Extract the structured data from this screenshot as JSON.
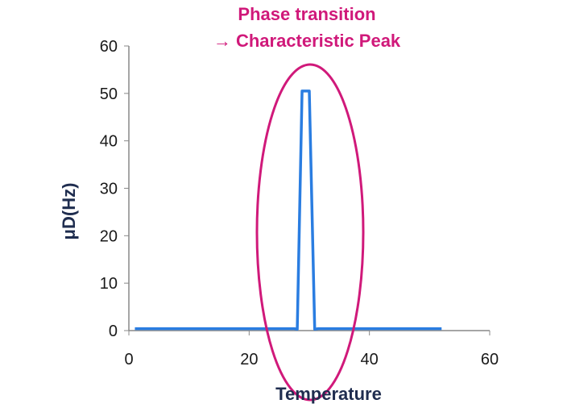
{
  "chart_data": {
    "type": "line",
    "title": "",
    "xlabel": "Temperature",
    "ylabel": "μD(Hz)",
    "xlim": [
      0,
      60
    ],
    "ylim": [
      0,
      60
    ],
    "xticks": [
      0,
      20,
      40,
      60
    ],
    "yticks": [
      0,
      10,
      20,
      30,
      40,
      50,
      60
    ],
    "grid": false,
    "series": [
      {
        "name": "μD",
        "color": "#2a7de1",
        "x": [
          1,
          27.5,
          28.0,
          28.8,
          30.0,
          30.9,
          31.5,
          52
        ],
        "y": [
          0.4,
          0.4,
          0.3,
          50.5,
          50.5,
          0.3,
          0.4,
          0.4
        ]
      }
    ],
    "annotations": [
      {
        "line1": "Phase transition",
        "line2": "→ Characteristic Peak",
        "color": "#d0197a",
        "highlight": "ellipse around peak",
        "center_x": 30,
        "center_y": 21
      }
    ]
  }
}
